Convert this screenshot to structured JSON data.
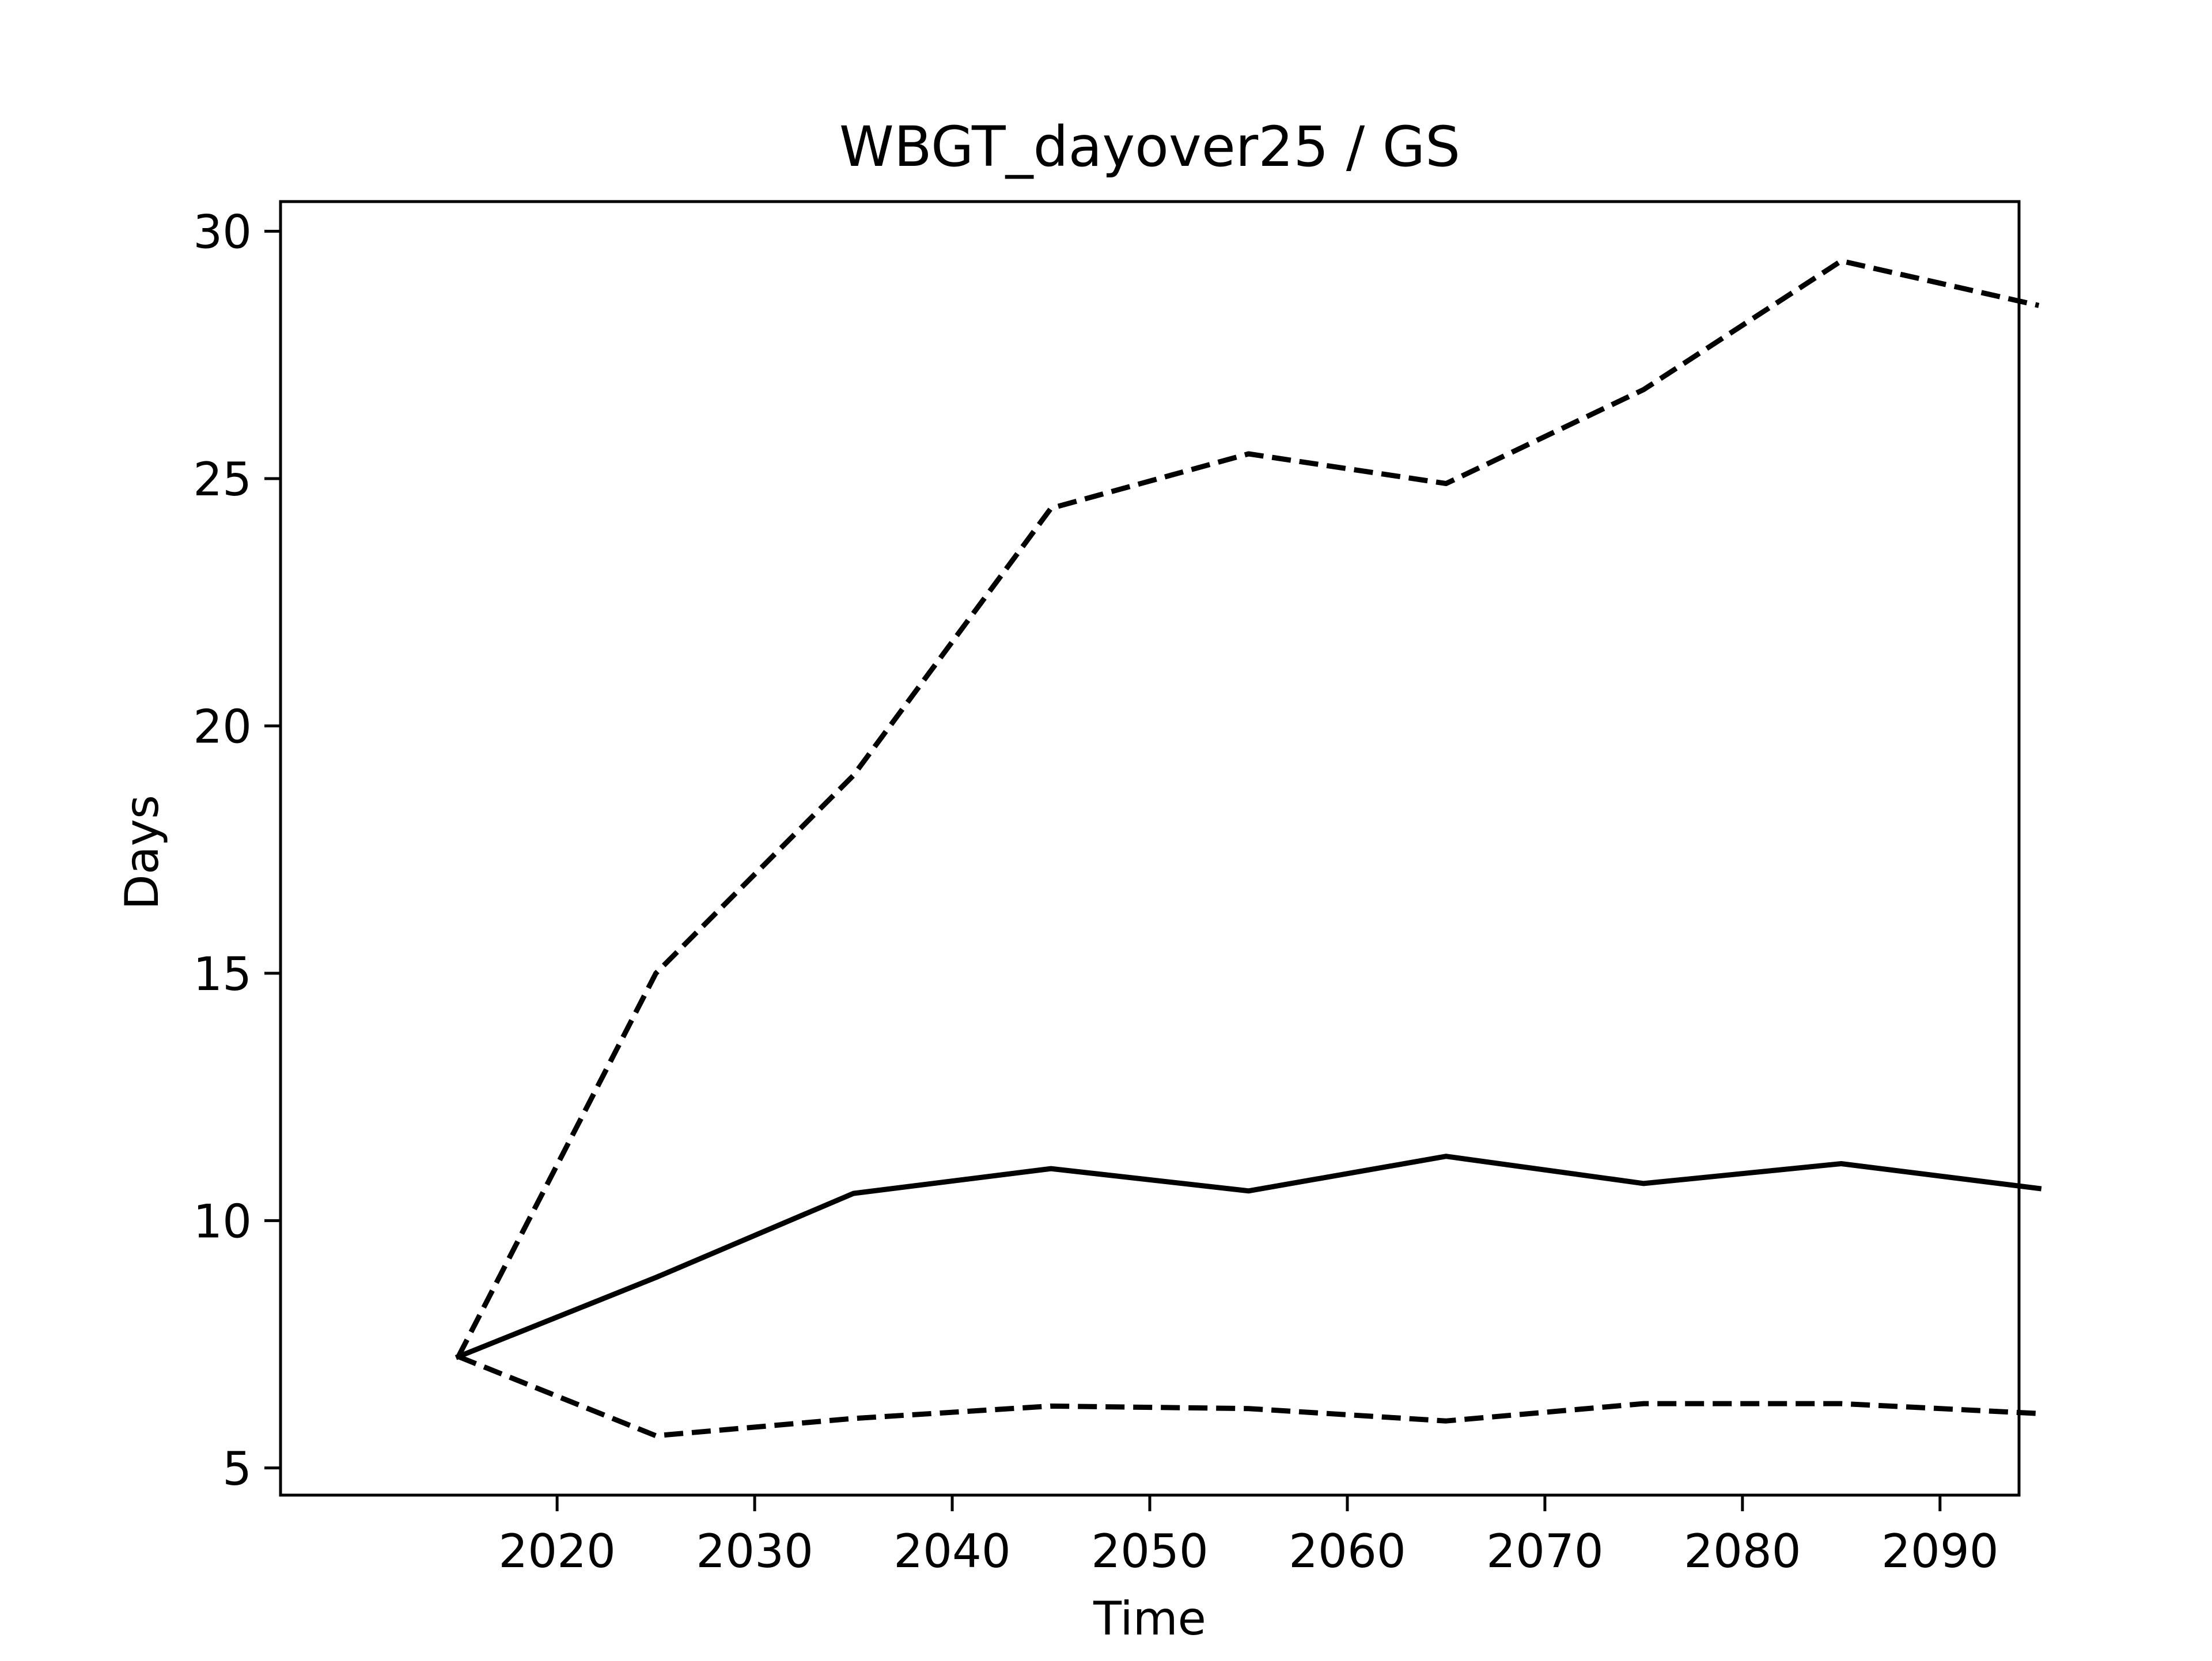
{
  "chart_data": {
    "type": "line",
    "title": "WBGT_dayover25 / GS",
    "xlabel": "Time",
    "ylabel": "Days",
    "x": [
      2015,
      2025,
      2035,
      2045,
      2055,
      2065,
      2075,
      2085,
      2095
    ],
    "xlim": [
      2006,
      2094
    ],
    "ylim": [
      4.45,
      30.6
    ],
    "xticks": [
      2020,
      2030,
      2040,
      2050,
      2060,
      2070,
      2080,
      2090
    ],
    "yticks": [
      5,
      10,
      15,
      20,
      25,
      30
    ],
    "grid": false,
    "series": [
      {
        "style": "dashed",
        "color": "#000000",
        "values": [
          7.25,
          15.0,
          19.0,
          24.4,
          25.5,
          24.9,
          26.8,
          29.4,
          28.5
        ]
      },
      {
        "style": "solid",
        "color": "#000000",
        "values": [
          7.25,
          8.85,
          10.55,
          11.05,
          10.6,
          11.3,
          10.75,
          11.15,
          10.65
        ]
      },
      {
        "style": "dashed",
        "color": "#000000",
        "values": [
          7.25,
          5.65,
          6.0,
          6.25,
          6.2,
          5.95,
          6.3,
          6.3,
          6.1
        ]
      }
    ]
  }
}
